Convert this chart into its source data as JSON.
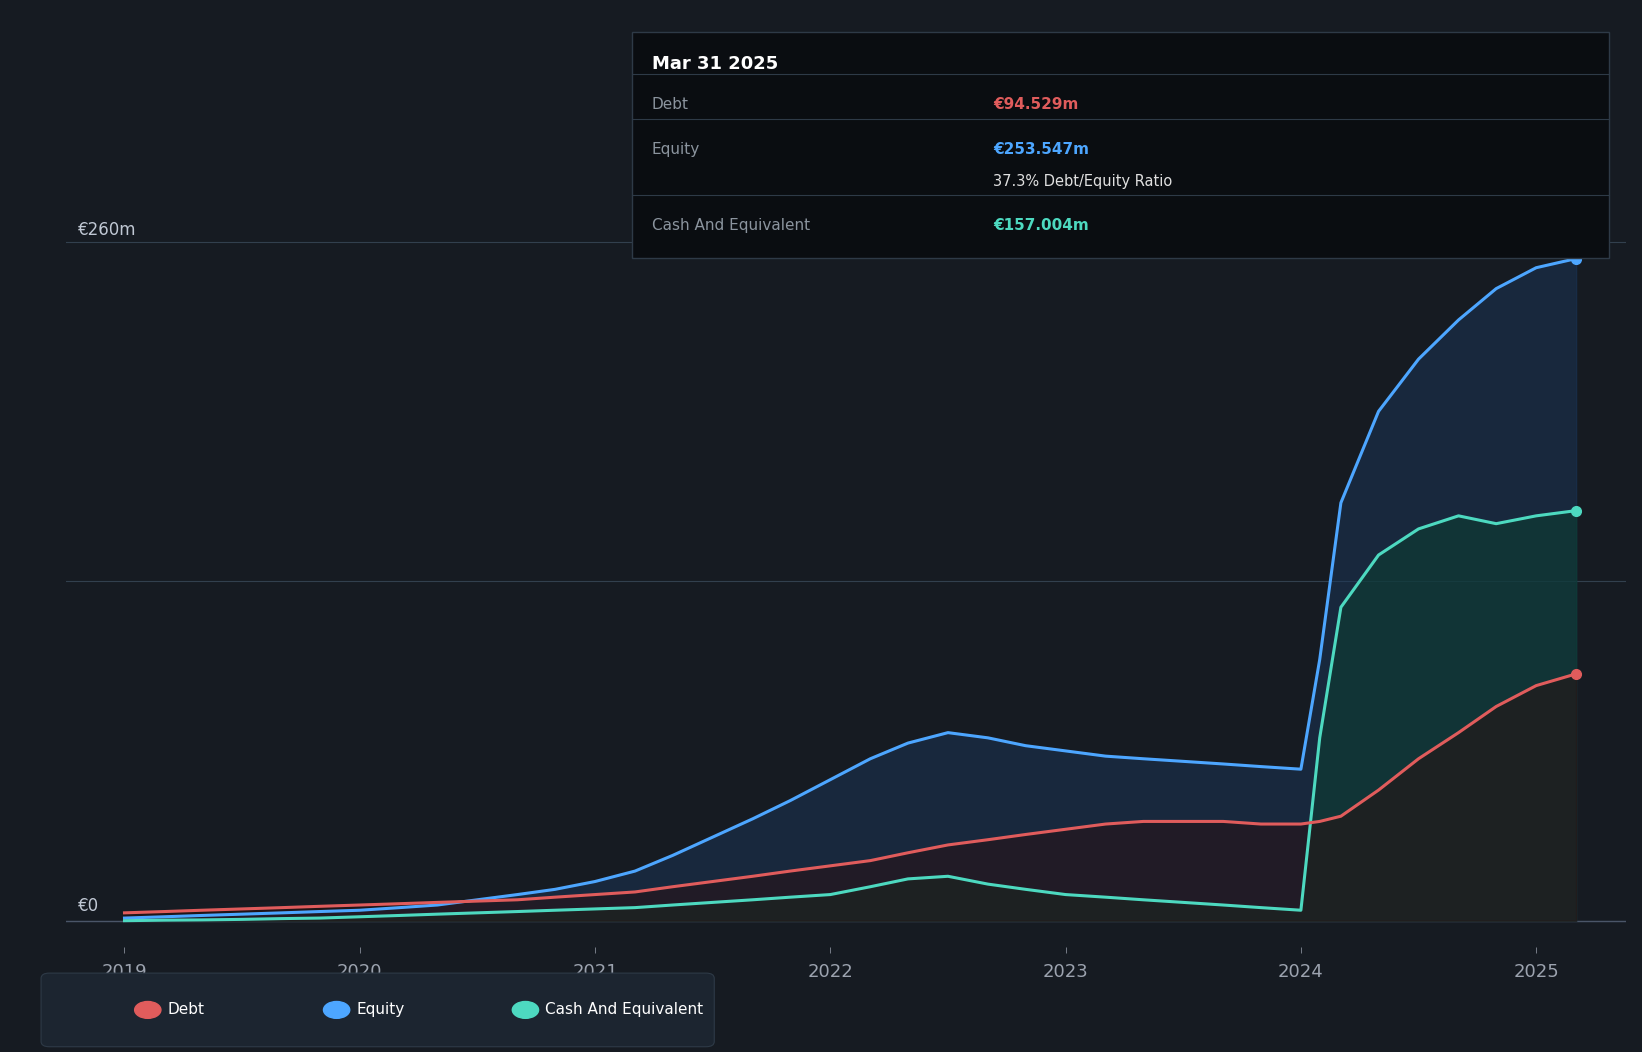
{
  "background_color": "#161b22",
  "plot_bg_color": "#161b22",
  "grid_color": "#404a57",
  "axis_label_color": "#8b949e",
  "y_label": "€260m",
  "y_zero_label": "€0",
  "x_ticks": [
    2019,
    2020,
    2021,
    2022,
    2023,
    2024,
    2025
  ],
  "ylim": [
    -10,
    280
  ],
  "xlim": [
    2018.75,
    2025.38
  ],
  "debt_color": "#e05c5c",
  "equity_color": "#4da6ff",
  "cash_color": "#4dd9c0",
  "tooltip_bg": "#0a0d11",
  "tooltip_border": "#2e3a47",
  "tooltip_title": "Mar 31 2025",
  "tooltip_debt_label": "Debt",
  "tooltip_debt_value": "€94.529m",
  "tooltip_equity_label": "Equity",
  "tooltip_equity_value": "€253.547m",
  "tooltip_ratio": "37.3% Debt/Equity Ratio",
  "tooltip_cash_label": "Cash And Equivalent",
  "tooltip_cash_value": "€157.004m",
  "legend_bg": "#1c2530",
  "times": [
    2019.0,
    2019.17,
    2019.33,
    2019.5,
    2019.67,
    2019.83,
    2020.0,
    2020.17,
    2020.33,
    2020.5,
    2020.67,
    2020.83,
    2021.0,
    2021.17,
    2021.33,
    2021.5,
    2021.67,
    2021.83,
    2022.0,
    2022.17,
    2022.33,
    2022.5,
    2022.67,
    2022.83,
    2023.0,
    2023.17,
    2023.33,
    2023.5,
    2023.67,
    2023.83,
    2024.0,
    2024.08,
    2024.17,
    2024.33,
    2024.5,
    2024.67,
    2024.83,
    2025.0,
    2025.17
  ],
  "debt": [
    3,
    3.5,
    4,
    4.5,
    5,
    5.5,
    6,
    6.5,
    7,
    7.5,
    8,
    9,
    10,
    11,
    13,
    15,
    17,
    19,
    21,
    23,
    26,
    29,
    31,
    33,
    35,
    37,
    38,
    38,
    38,
    37,
    37,
    38,
    40,
    50,
    62,
    72,
    82,
    90,
    94.5
  ],
  "equity": [
    1,
    1.5,
    2,
    2.5,
    3,
    3.5,
    4,
    5,
    6,
    8,
    10,
    12,
    15,
    19,
    25,
    32,
    39,
    46,
    54,
    62,
    68,
    72,
    70,
    67,
    65,
    63,
    62,
    61,
    60,
    59,
    58,
    100,
    160,
    195,
    215,
    230,
    242,
    250,
    253.5
  ],
  "cash": [
    0,
    0.2,
    0.3,
    0.5,
    0.8,
    1,
    1.5,
    2,
    2.5,
    3,
    3.5,
    4,
    4.5,
    5,
    6,
    7,
    8,
    9,
    10,
    13,
    16,
    17,
    14,
    12,
    10,
    9,
    8,
    7,
    6,
    5,
    4,
    70,
    120,
    140,
    150,
    155,
    152,
    155,
    157
  ]
}
